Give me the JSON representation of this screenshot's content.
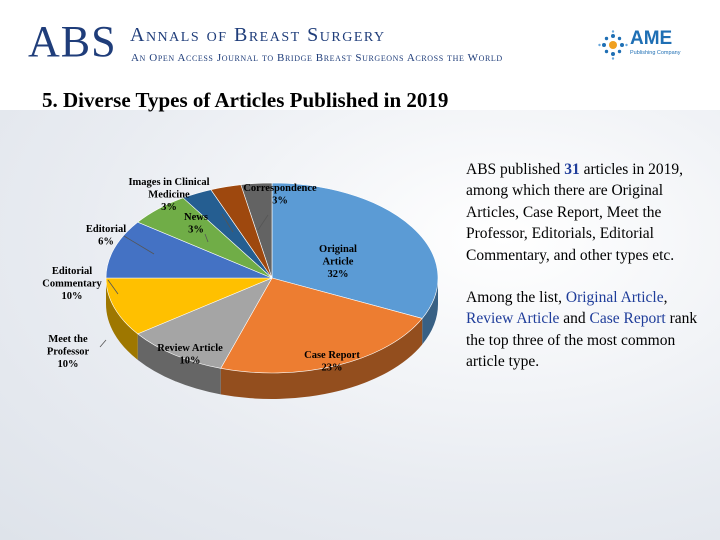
{
  "header": {
    "logo": "ABS",
    "journal_title": "Annals of Breast Surgery",
    "journal_subtitle": "An Open Access Journal to Bridge Breast Surgeons Across the World",
    "publisher_logo": "AME",
    "publisher_subtitle": "Publishing Company"
  },
  "slide": {
    "title": "5. Diverse Types of Articles Published in 2019"
  },
  "text_panel": {
    "p1_before": "ABS published ",
    "p1_number": "31",
    "p1_after": " articles in 2019, among which there are Original Articles, Case Report, Meet the Professor, Editorials, Editorial Commentary, and other types etc.",
    "p2_before": "Among the list, ",
    "p2_hl1": "Original Article",
    "p2_sep1": ", ",
    "p2_hl2": "Review Article",
    "p2_sep2": " and ",
    "p2_hl3": "Case Report",
    "p2_after": " rank the top three of the most common article type."
  },
  "chart_data": {
    "type": "pie",
    "title": "",
    "three_d": true,
    "slices": [
      {
        "label": "Original Article",
        "value": 32,
        "display": "32%",
        "color": "#5b9bd5"
      },
      {
        "label": "Case Report",
        "value": 23,
        "display": "23%",
        "color": "#ed7d31"
      },
      {
        "label": "Review Article",
        "value": 10,
        "display": "10%",
        "color": "#a5a5a5"
      },
      {
        "label": "Meet the Professor",
        "value": 10,
        "display": "10%",
        "color": "#ffc000"
      },
      {
        "label": "Editorial Commentary",
        "value": 10,
        "display": "10%",
        "color": "#4472c4"
      },
      {
        "label": "Editorial",
        "value": 6,
        "display": "6%",
        "color": "#70ad47"
      },
      {
        "label": "News",
        "value": 3,
        "display": "3%",
        "color": "#255e91"
      },
      {
        "label": "Images in Clinical Medicine",
        "value": 3,
        "display": "3%",
        "color": "#9e480e"
      },
      {
        "label": "Correspondence",
        "value": 3,
        "display": "3%",
        "color": "#636363"
      }
    ]
  }
}
